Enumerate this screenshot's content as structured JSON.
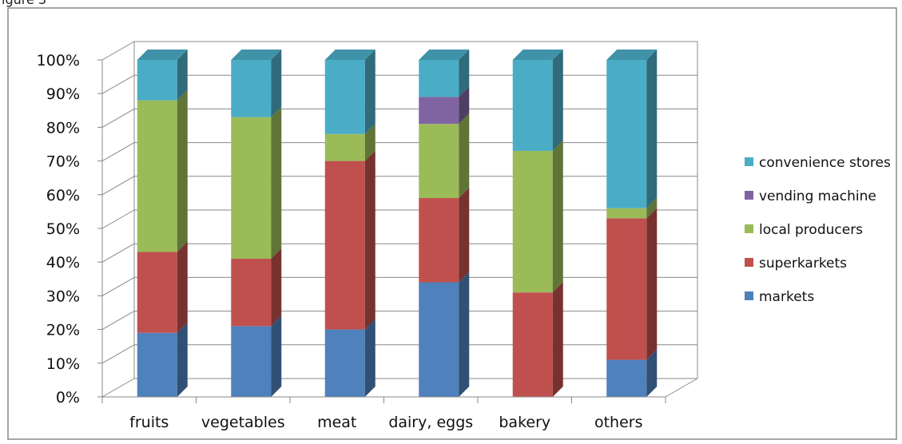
{
  "header_fragment": "igure 3",
  "chart_data": {
    "type": "bar",
    "stacked": true,
    "percent_stacked": true,
    "three_d": true,
    "categories": [
      "fruits",
      "vegetables",
      "meat",
      "dairy, eggs",
      "bakery",
      "others"
    ],
    "series": [
      {
        "name": "markets",
        "color": "#4f81bd",
        "values": [
          19,
          21,
          20,
          34,
          0,
          11
        ]
      },
      {
        "name": "superkarkets",
        "color": "#c0504d",
        "values": [
          24,
          20,
          50,
          25,
          31,
          42
        ]
      },
      {
        "name": "local producers",
        "color": "#9bbb59",
        "values": [
          45,
          42,
          8,
          22,
          42,
          3
        ]
      },
      {
        "name": "vending machine",
        "color": "#8064a2",
        "values": [
          0,
          0,
          0,
          8,
          0,
          0
        ]
      },
      {
        "name": "convenience stores",
        "color": "#4bacc6",
        "values": [
          12,
          17,
          22,
          11,
          27,
          44
        ]
      }
    ],
    "y_ticks": [
      "0%",
      "10%",
      "20%",
      "30%",
      "40%",
      "50%",
      "60%",
      "70%",
      "80%",
      "90%",
      "100%"
    ],
    "ylim": [
      0,
      100
    ],
    "grid": true,
    "legend_position": "right",
    "legend_order": [
      "convenience stores",
      "vending machine",
      "local producers",
      "superkarkets",
      "markets"
    ]
  }
}
